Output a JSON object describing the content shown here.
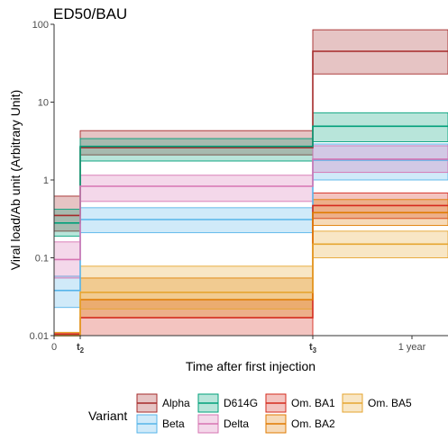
{
  "chart_data": {
    "type": "line",
    "title": "ED50/BAU",
    "xlabel": "Time  after first injection",
    "ylabel": "Viral load/Ab unit (Arbitrary Unit)",
    "y_scale": "log10",
    "ylim": [
      0.01,
      100
    ],
    "y_ticks": [
      {
        "value": 0.01,
        "label": "0.01"
      },
      {
        "value": 0.1,
        "label": "0.1"
      },
      {
        "value": 1,
        "label": "1"
      },
      {
        "value": 10,
        "label": "10"
      },
      {
        "value": 100,
        "label": "100"
      }
    ],
    "x_ticks": [
      {
        "key": "zero",
        "label": "0",
        "sub": ""
      },
      {
        "key": "t2",
        "label": "t",
        "sub": "2"
      },
      {
        "key": "t3",
        "label": "t",
        "sub": "3"
      },
      {
        "key": "year",
        "label": "1 year",
        "sub": ""
      }
    ],
    "intervals": [
      "0–t2",
      "t2–t3",
      "t3–end"
    ],
    "legend_title": "Variant",
    "legend_position": "bottom",
    "grid": false,
    "series": [
      {
        "name": "Alpha",
        "color": "#A52A2A",
        "values": [
          0.35,
          2.6,
          45
        ],
        "lower": [
          0.22,
          2.1,
          23
        ],
        "upper": [
          0.62,
          4.3,
          85
        ]
      },
      {
        "name": "Beta",
        "color": "#56B4E9",
        "values": [
          0.038,
          0.31,
          1.8
        ],
        "lower": [
          0.023,
          0.21,
          1.0
        ],
        "upper": [
          0.058,
          0.44,
          2.9
        ]
      },
      {
        "name": "D614G",
        "color": "#00A07A",
        "values": [
          0.28,
          2.7,
          4.9
        ],
        "lower": [
          0.19,
          1.75,
          3.1
        ],
        "upper": [
          0.42,
          3.4,
          7.3
        ]
      },
      {
        "name": "Delta",
        "color": "#D674B2",
        "values": [
          0.095,
          0.83,
          1.85
        ],
        "lower": [
          0.055,
          0.53,
          1.25
        ],
        "upper": [
          0.16,
          1.15,
          2.75
        ]
      },
      {
        "name": "Om. BA1",
        "color": "#D52B1E",
        "values": [
          0.0105,
          0.017,
          0.47
        ],
        "lower": [
          0.01,
          0.01,
          0.32
        ],
        "upper": [
          0.011,
          0.029,
          0.68
        ]
      },
      {
        "name": "Om. BA2",
        "color": "#E07B00",
        "values": [
          0.01,
          0.029,
          0.38
        ],
        "lower": [
          0.01,
          0.017,
          0.26
        ],
        "upper": [
          0.011,
          0.055,
          0.56
        ]
      },
      {
        "name": "Om. BA5",
        "color": "#E6A530",
        "values": [
          0.01,
          0.036,
          0.15
        ],
        "lower": [
          0.01,
          0.022,
          0.1
        ],
        "upper": [
          0.011,
          0.078,
          0.22
        ]
      }
    ]
  }
}
